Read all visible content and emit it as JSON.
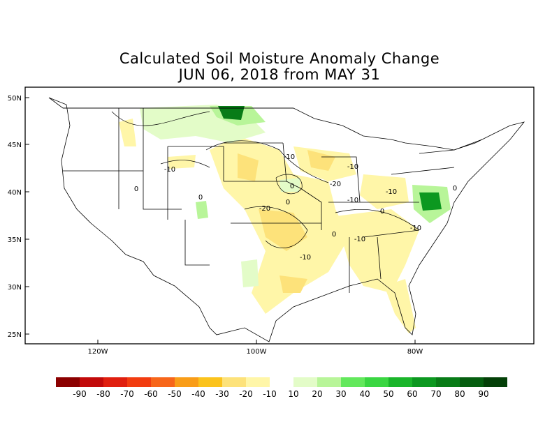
{
  "title": "Calculated Soil Moisture Anomaly Change",
  "subtitle": "JUN 06, 2018 from MAY 31",
  "lat_ticks": [
    "50N",
    "45N",
    "40N",
    "35N",
    "30N",
    "25N"
  ],
  "lon_ticks": [
    "120W",
    "100W",
    "80W"
  ],
  "contour_labels": [
    "-10",
    "-10",
    "-10",
    "-20",
    "-10",
    "-10",
    "-20",
    "-10",
    "-10",
    "-10",
    "0",
    "0",
    "0",
    "0",
    "0",
    "0",
    "0"
  ],
  "legend": {
    "labels": [
      "-90",
      "-80",
      "-70",
      "-60",
      "-50",
      "-40",
      "-30",
      "-20",
      "-10",
      "10",
      "20",
      "30",
      "40",
      "50",
      "60",
      "70",
      "80",
      "90"
    ],
    "colors": [
      "#8b0000",
      "#c20a0a",
      "#e01f0f",
      "#f23c10",
      "#f7661a",
      "#f99d18",
      "#fbc31d",
      "#fde27a",
      "#fff6a8",
      "#ffffff",
      "#e3fcc8",
      "#b8f599",
      "#63e85c",
      "#3ad642",
      "#1ab52a",
      "#0c9820",
      "#087c17",
      "#065e10",
      "#044008"
    ]
  }
}
